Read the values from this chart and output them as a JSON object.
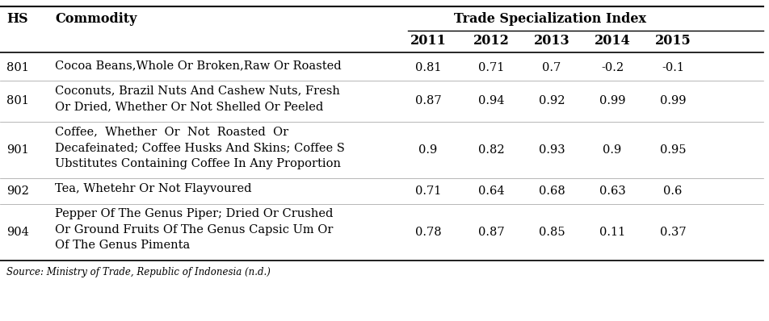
{
  "col_hs_header": "HS",
  "col_comm_header": "Commodity",
  "col_tsi_header": "Trade Specialization Index",
  "years": [
    "2011",
    "2012",
    "2013",
    "2014",
    "2015"
  ],
  "rows": [
    {
      "hs": "801",
      "commodity_lines": [
        "Cocoa Beans,Whole Or Broken,Raw Or Roasted"
      ],
      "values": [
        "0.81",
        "0.71",
        "0.7",
        "-0.2",
        "-0.1"
      ],
      "n_lines": 1
    },
    {
      "hs": "801",
      "commodity_lines": [
        "Coconuts, Brazil Nuts And Cashew Nuts, Fresh",
        "Or Dried, Whether Or Not Shelled Or Peeled"
      ],
      "values": [
        "0.87",
        "0.94",
        "0.92",
        "0.99",
        "0.99"
      ],
      "n_lines": 2
    },
    {
      "hs": "901",
      "commodity_lines": [
        "Coffee,  Whether  Or  Not  Roasted  Or",
        "Decafeinated; Coffee Husks And Skins; Coffee S",
        "Ubstitutes Containing Coffee In Any Proportion"
      ],
      "values": [
        "0.9",
        "0.82",
        "0.93",
        "0.9",
        "0.95"
      ],
      "n_lines": 3
    },
    {
      "hs": "902",
      "commodity_lines": [
        "Tea, Whetehr Or Not Flayvoured"
      ],
      "values": [
        "0.71",
        "0.64",
        "0.68",
        "0.63",
        "0.6"
      ],
      "n_lines": 1
    },
    {
      "hs": "904",
      "commodity_lines": [
        "Pepper Of The Genus Piper; Dried Or Crushed",
        "Or Ground Fruits Of The Genus Capsic Um Or",
        "Of The Genus Pimenta"
      ],
      "values": [
        "0.78",
        "0.87",
        "0.85",
        "0.11",
        "0.37"
      ],
      "n_lines": 3
    }
  ],
  "footer": "Source: Ministry of Trade, Republic of Indonesia (n.d.)",
  "bg_color": "#ffffff",
  "text_color": "#000000",
  "font_family": "serif",
  "data_fontsize": 10.5,
  "header_fontsize": 11.5
}
